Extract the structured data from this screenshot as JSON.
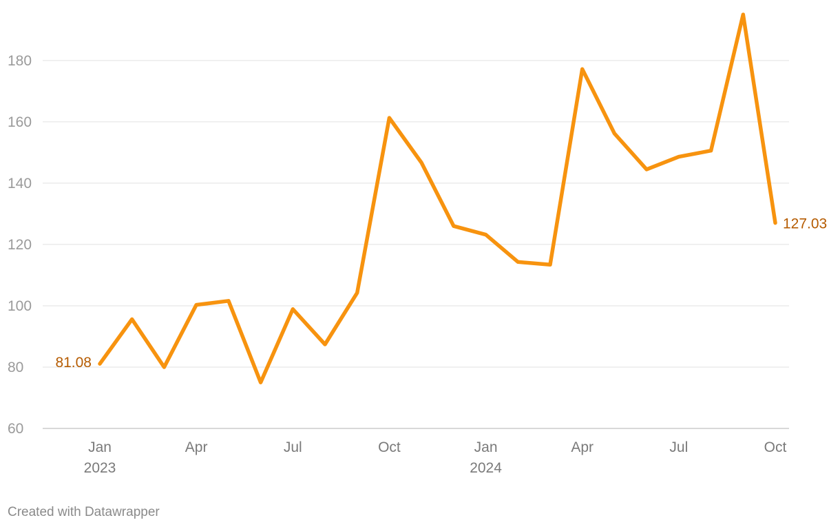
{
  "chart_data": {
    "type": "line",
    "x": [
      "2023-01",
      "2023-02",
      "2023-03",
      "2023-04",
      "2023-05",
      "2023-06",
      "2023-07",
      "2023-08",
      "2023-09",
      "2023-10",
      "2023-11",
      "2023-12",
      "2024-01",
      "2024-02",
      "2024-03",
      "2024-04",
      "2024-05",
      "2024-06",
      "2024-07",
      "2024-08",
      "2024-09",
      "2024-10"
    ],
    "series": [
      {
        "values": [
          81.08,
          95.6,
          80.0,
          100.3,
          101.6,
          75.0,
          98.9,
          87.4,
          104.2,
          161.3,
          146.7,
          126.0,
          123.2,
          114.3,
          113.4,
          177.2,
          156.2,
          144.5,
          148.6,
          150.6,
          195.0,
          127.03
        ],
        "color": "#f7930f"
      }
    ],
    "ylim": [
      60,
      200
    ],
    "yticks": [
      "60",
      "80",
      "100",
      "120",
      "140",
      "160",
      "180"
    ],
    "xticks": [
      {
        "month": "Jan",
        "year": "2023"
      },
      {
        "month": "Apr",
        "year": ""
      },
      {
        "month": "Jul",
        "year": ""
      },
      {
        "month": "Oct",
        "year": ""
      },
      {
        "month": "Jan",
        "year": "2024"
      },
      {
        "month": "Apr",
        "year": ""
      },
      {
        "month": "Jul",
        "year": ""
      },
      {
        "month": "Oct",
        "year": ""
      }
    ],
    "endpoint_labels": {
      "first": "81.08",
      "last": "127.03",
      "color": "#b55b00"
    },
    "grid": true,
    "gridline_color": "#e0e0e0",
    "axis_color": "#cccccc"
  },
  "footer": {
    "credit": "Created with Datawrapper"
  }
}
